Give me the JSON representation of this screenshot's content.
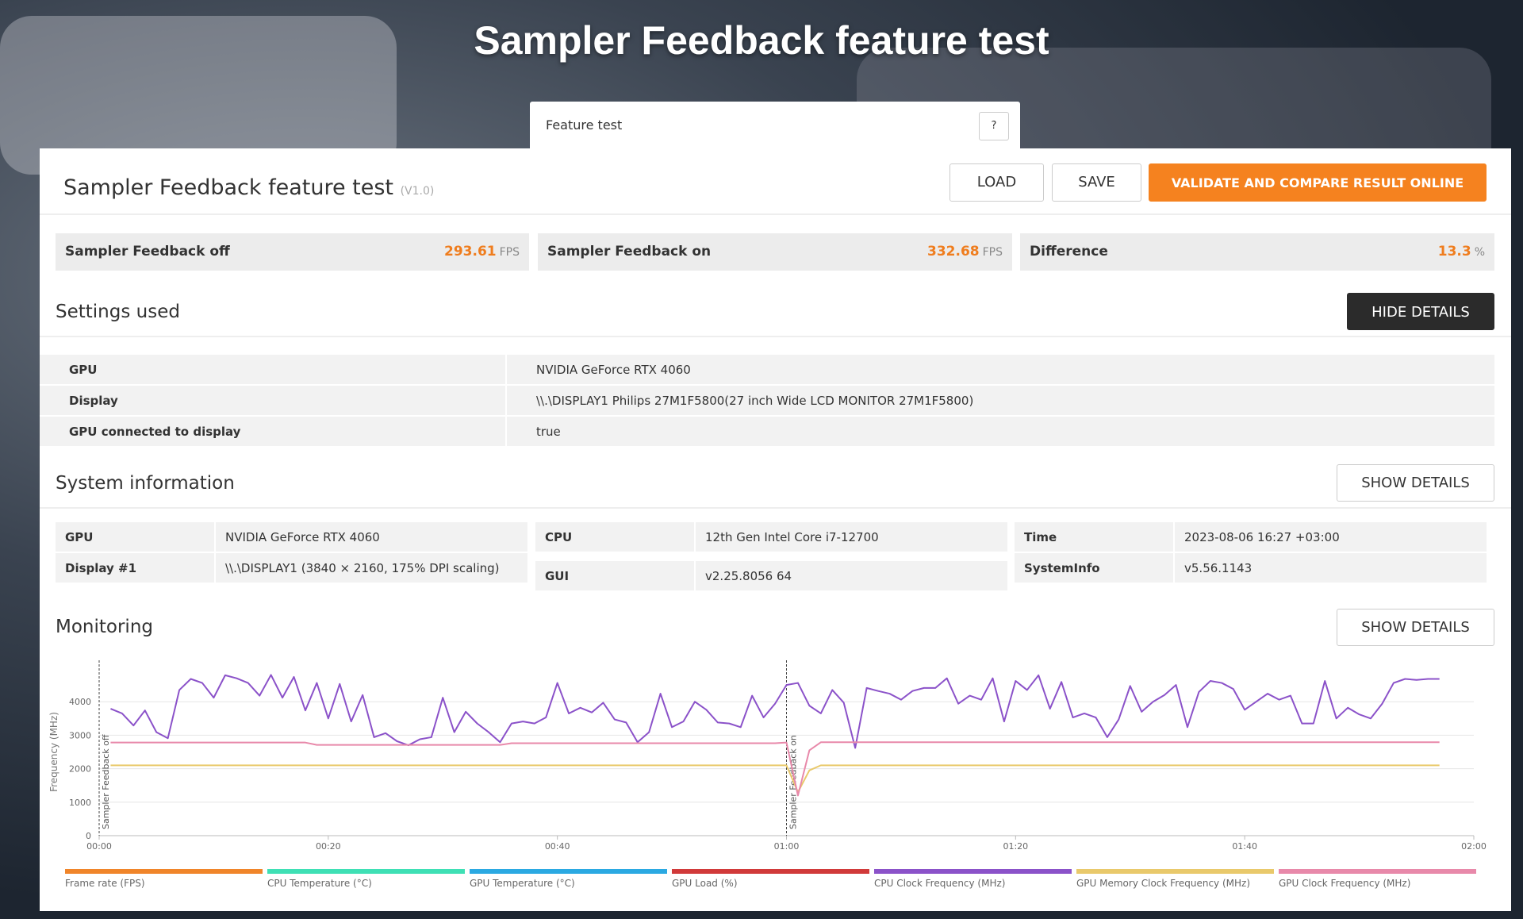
{
  "page_title": "Sampler Feedback feature test",
  "tab": {
    "label": "Feature test",
    "help": "?"
  },
  "header": {
    "title": "Sampler Feedback feature test",
    "version": "(V1.0)",
    "buttons": [
      "LOAD",
      "SAVE",
      "VALIDATE AND COMPARE RESULT ONLINE"
    ]
  },
  "scores": [
    {
      "label": "Sampler Feedback off",
      "value": 293.61,
      "unit": "FPS"
    },
    {
      "label": "Sampler Feedback on",
      "value": 332.68,
      "unit": "FPS"
    },
    {
      "label": "Difference",
      "value": 13.3,
      "unit": "%"
    }
  ],
  "settings": {
    "title": "Settings used",
    "button": "HIDE DETAILS",
    "rows": [
      [
        "GPU",
        "NVIDIA GeForce RTX 4060"
      ],
      [
        "Display",
        "\\\\.\\DISPLAY1 Philips 27M1F5800(27 inch Wide LCD MONITOR 27M1F5800)"
      ],
      [
        "GPU connected to display",
        "true"
      ]
    ]
  },
  "system": {
    "title": "System information",
    "button": "SHOW DETAILS",
    "columns": [
      [
        [
          "GPU",
          "NVIDIA GeForce RTX 4060"
        ],
        [
          "Display #1",
          "\\\\.\\DISPLAY1 (3840 × 2160, 175% DPI scaling)"
        ]
      ],
      [
        [
          "CPU",
          "12th Gen Intel Core i7-12700"
        ],
        [
          "GUI",
          "v2.25.8056 64"
        ]
      ],
      [
        [
          "Time",
          "2023-08-06 16:27 +03:00"
        ],
        [
          "SystemInfo",
          "v5.56.1143"
        ]
      ]
    ]
  },
  "monitoring": {
    "title": "Monitoring",
    "button": "SHOW DETAILS",
    "chart": {
      "type": "line",
      "y_label": "Frequency (MHz)",
      "xlim": [
        0,
        120
      ],
      "xticks": [
        {
          "value": 0,
          "label": "00:00"
        },
        {
          "value": 20,
          "label": "00:20"
        },
        {
          "value": 40,
          "label": "00:40"
        },
        {
          "value": 60,
          "label": "01:00"
        },
        {
          "value": 80,
          "label": "01:20"
        },
        {
          "value": 100,
          "label": "01:40"
        },
        {
          "value": 120,
          "label": "02:00"
        }
      ],
      "ylim": [
        0,
        5000
      ],
      "yticks": [
        0,
        1000,
        2000,
        3000,
        4000
      ],
      "grid": true,
      "markers": [
        {
          "x": 0,
          "label": "Sampler Feedback off"
        },
        {
          "x": 60,
          "label": "Sampler Feedback on"
        }
      ],
      "x": [
        1,
        2,
        3,
        4,
        5,
        6,
        7,
        8,
        9,
        10,
        11,
        12,
        13,
        14,
        15,
        16,
        17,
        18,
        19,
        20,
        21,
        22,
        23,
        24,
        25,
        26,
        27,
        28,
        29,
        30,
        31,
        32,
        33,
        34,
        35,
        36,
        37,
        38,
        39,
        40,
        41,
        42,
        43,
        44,
        45,
        46,
        47,
        48,
        49,
        50,
        51,
        52,
        53,
        54,
        55,
        56,
        57,
        58,
        59,
        60,
        61,
        62,
        63,
        64,
        65,
        66,
        67,
        68,
        69,
        70,
        71,
        72,
        73,
        74,
        75,
        76,
        77,
        78,
        79,
        80,
        81,
        82,
        83,
        84,
        85,
        86,
        87,
        88,
        89,
        90,
        91,
        92,
        93,
        94,
        95,
        96,
        97,
        98,
        99,
        100,
        101,
        102,
        103,
        104,
        105,
        106,
        107,
        108,
        109,
        110,
        111,
        112,
        113,
        114,
        115,
        116,
        117
      ],
      "series": [
        {
          "name": "Frame rate (FPS)",
          "color": "#f0852a"
        },
        {
          "name": "CPU Temperature (°C)",
          "color": "#3fe0b5"
        },
        {
          "name": "GPU Temperature (°C)",
          "color": "#2ba9e2"
        },
        {
          "name": "GPU Load (%)",
          "color": "#d13a3a"
        },
        {
          "name": "CPU Clock Frequency (MHz)",
          "color": "#8b52c9",
          "values": [
            3790,
            3650,
            3290,
            3740,
            3090,
            2910,
            4350,
            4680,
            4560,
            4120,
            4790,
            4700,
            4560,
            4180,
            4800,
            4120,
            4740,
            3740,
            4560,
            3500,
            4530,
            3410,
            4200,
            2940,
            3060,
            2820,
            2700,
            2880,
            2940,
            4120,
            3090,
            3700,
            3350,
            3090,
            2790,
            3350,
            3410,
            3350,
            3530,
            4560,
            3650,
            3820,
            3680,
            3970,
            3470,
            3380,
            2790,
            3090,
            4240,
            3240,
            3410,
            4000,
            3760,
            3380,
            3350,
            3240,
            4180,
            3530,
            3940,
            4500,
            4560,
            3880,
            3650,
            4350,
            3970,
            2620,
            4410,
            4320,
            4240,
            4060,
            4320,
            4410,
            4410,
            4700,
            3940,
            4180,
            4060,
            4700,
            3410,
            4620,
            4350,
            4790,
            3790,
            4590,
            3530,
            3650,
            3530,
            2940,
            3470,
            4470,
            3700,
            4000,
            4200,
            4500,
            3240,
            4290,
            4620,
            4560,
            4380,
            3760,
            4000,
            4240,
            4060,
            4180,
            3350,
            3350,
            4620,
            3500,
            3820,
            3620,
            3500,
            3940,
            4560,
            4680,
            4650,
            4680,
            4680
          ]
        },
        {
          "name": "GPU Memory Clock Frequency (MHz)",
          "color": "#e9c96b",
          "values": [
            2100,
            2100,
            2100,
            2100,
            2100,
            2100,
            2100,
            2100,
            2100,
            2100,
            2100,
            2100,
            2100,
            2100,
            2100,
            2100,
            2100,
            2100,
            2100,
            2100,
            2100,
            2100,
            2100,
            2100,
            2100,
            2100,
            2100,
            2100,
            2100,
            2100,
            2100,
            2100,
            2100,
            2100,
            2100,
            2100,
            2100,
            2100,
            2100,
            2100,
            2100,
            2100,
            2100,
            2100,
            2100,
            2100,
            2100,
            2100,
            2100,
            2100,
            2100,
            2100,
            2100,
            2100,
            2100,
            2100,
            2100,
            2100,
            2100,
            2100,
            1300,
            1950,
            2100,
            2100,
            2100,
            2100,
            2100,
            2100,
            2100,
            2100,
            2100,
            2100,
            2100,
            2100,
            2100,
            2100,
            2100,
            2100,
            2100,
            2100,
            2100,
            2100,
            2100,
            2100,
            2100,
            2100,
            2100,
            2100,
            2100,
            2100,
            2100,
            2100,
            2100,
            2100,
            2100,
            2100,
            2100,
            2100,
            2100,
            2100,
            2100,
            2100,
            2100,
            2100,
            2100,
            2100,
            2100,
            2100,
            2100,
            2100,
            2100,
            2100,
            2100,
            2100,
            2100,
            2100,
            2100
          ]
        },
        {
          "name": "GPU Clock Frequency (MHz)",
          "color": "#e889aa",
          "values": [
            2780,
            2780,
            2780,
            2780,
            2780,
            2780,
            2780,
            2780,
            2780,
            2780,
            2780,
            2780,
            2780,
            2780,
            2780,
            2780,
            2780,
            2780,
            2710,
            2710,
            2710,
            2710,
            2710,
            2710,
            2710,
            2710,
            2710,
            2710,
            2710,
            2710,
            2710,
            2710,
            2710,
            2710,
            2710,
            2760,
            2760,
            2760,
            2760,
            2760,
            2760,
            2760,
            2760,
            2760,
            2760,
            2760,
            2760,
            2760,
            2760,
            2760,
            2760,
            2760,
            2760,
            2760,
            2760,
            2760,
            2760,
            2760,
            2760,
            2780,
            1200,
            2550,
            2790,
            2790,
            2790,
            2790,
            2790,
            2790,
            2790,
            2790,
            2790,
            2790,
            2790,
            2790,
            2790,
            2790,
            2790,
            2790,
            2790,
            2790,
            2790,
            2790,
            2790,
            2790,
            2790,
            2790,
            2790,
            2790,
            2790,
            2790,
            2790,
            2790,
            2790,
            2790,
            2790,
            2790,
            2790,
            2790,
            2790,
            2790,
            2790,
            2790,
            2790,
            2790,
            2790,
            2790,
            2790,
            2790,
            2790,
            2790,
            2790,
            2790,
            2790,
            2790,
            2790,
            2790,
            2790
          ]
        }
      ]
    }
  }
}
